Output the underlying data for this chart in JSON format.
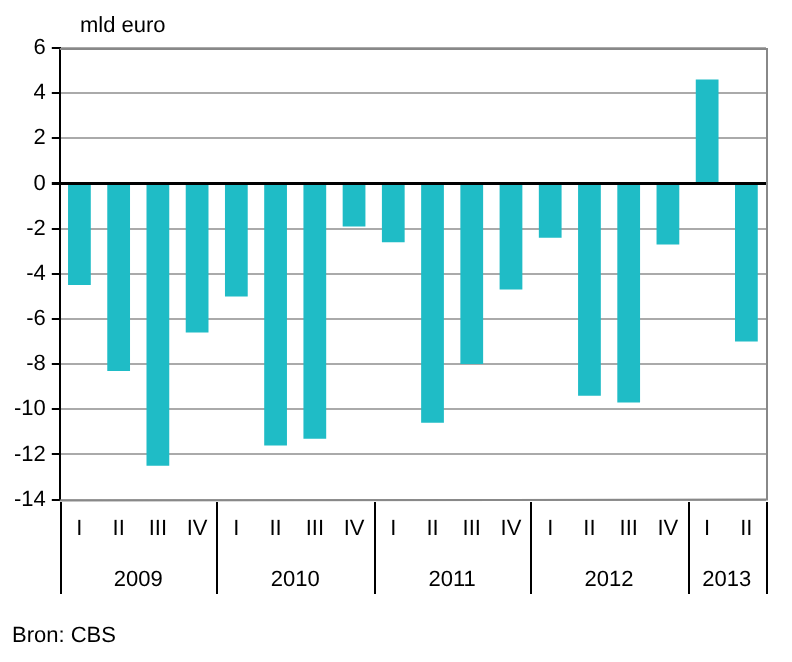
{
  "chart_data": {
    "type": "bar",
    "ylabel": "mld euro",
    "categories": [
      "I",
      "II",
      "III",
      "IV",
      "I",
      "II",
      "III",
      "IV",
      "I",
      "II",
      "III",
      "IV",
      "I",
      "II",
      "III",
      "IV",
      "I",
      "II"
    ],
    "values": [
      -4.5,
      -8.3,
      -12.5,
      -6.6,
      -5.0,
      -11.6,
      -11.3,
      -1.9,
      -2.6,
      -10.6,
      -8.0,
      -4.7,
      -2.4,
      -9.4,
      -9.7,
      -2.7,
      4.6,
      -7.0
    ],
    "color": "#1fbcc6",
    "ylim": [
      -14,
      6
    ],
    "yticks": [
      -14,
      -12,
      -10,
      -8,
      -6,
      -4,
      -2,
      0,
      2,
      4,
      6
    ],
    "grid": "y",
    "legend": false,
    "annotations": [
      "2009",
      "2010",
      "2011",
      "2012",
      "2013",
      "Bron: CBS"
    ]
  }
}
